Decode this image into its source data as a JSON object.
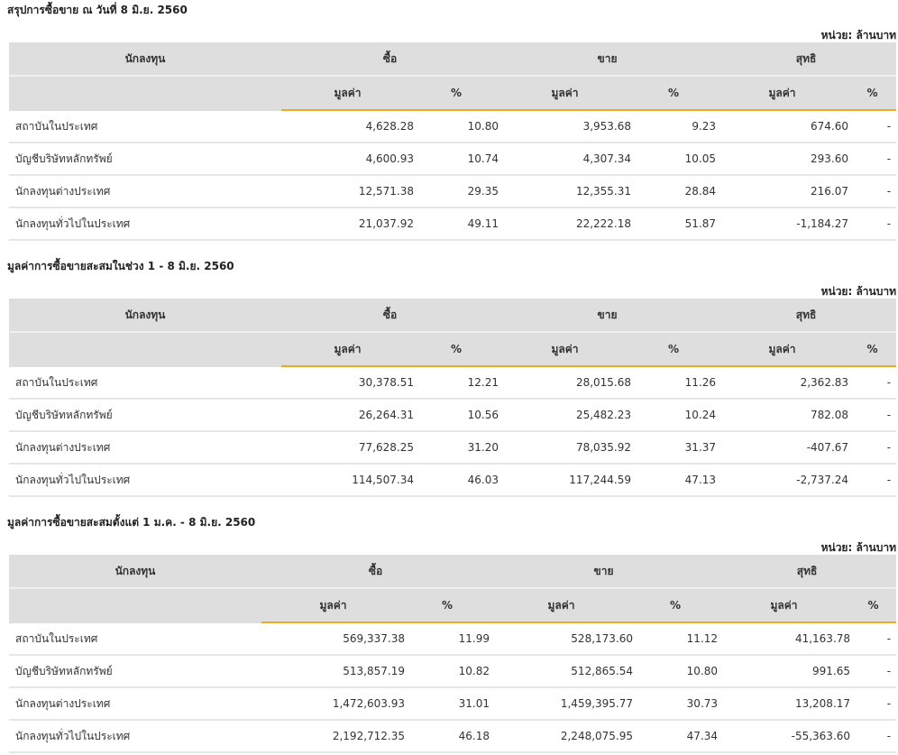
{
  "header_labels": {
    "investor": "นักลงทุน",
    "buy": "ซื้อ",
    "sell": "ขาย",
    "net": "สุทธิ",
    "value": "มูลค่า",
    "percent": "%",
    "unit": "หน่วย: ล้านบาท"
  },
  "colors": {
    "header_bg": "#dedede",
    "accent": "#f5a623",
    "positive": "#2e7d32",
    "negative": "#e02424"
  },
  "tables": [
    {
      "title": "สรุปการซื้อขาย ณ วันที่ 8 มิ.ย. 2560",
      "rows": [
        {
          "investor": "สถาบันในประเทศ",
          "buy_value": "4,628.28",
          "buy_pct": "10.80",
          "sell_value": "3,953.68",
          "sell_pct": "9.23",
          "net_value": "674.60",
          "net_pct": "-",
          "net_sign": "pos"
        },
        {
          "investor": "บัญชีบริษัทหลักทรัพย์",
          "buy_value": "4,600.93",
          "buy_pct": "10.74",
          "sell_value": "4,307.34",
          "sell_pct": "10.05",
          "net_value": "293.60",
          "net_pct": "-",
          "net_sign": "pos"
        },
        {
          "investor": "นักลงทุนต่างประเทศ",
          "buy_value": "12,571.38",
          "buy_pct": "29.35",
          "sell_value": "12,355.31",
          "sell_pct": "28.84",
          "net_value": "216.07",
          "net_pct": "-",
          "net_sign": "pos"
        },
        {
          "investor": "นักลงทุนทั่วไปในประเทศ",
          "buy_value": "21,037.92",
          "buy_pct": "49.11",
          "sell_value": "22,222.18",
          "sell_pct": "51.87",
          "net_value": "-1,184.27",
          "net_pct": "-",
          "net_sign": "neg"
        }
      ]
    },
    {
      "title": "มูลค่าการซื้อขายสะสมในช่วง 1 - 8 มิ.ย. 2560",
      "rows": [
        {
          "investor": "สถาบันในประเทศ",
          "buy_value": "30,378.51",
          "buy_pct": "12.21",
          "sell_value": "28,015.68",
          "sell_pct": "11.26",
          "net_value": "2,362.83",
          "net_pct": "-",
          "net_sign": "pos"
        },
        {
          "investor": "บัญชีบริษัทหลักทรัพย์",
          "buy_value": "26,264.31",
          "buy_pct": "10.56",
          "sell_value": "25,482.23",
          "sell_pct": "10.24",
          "net_value": "782.08",
          "net_pct": "-",
          "net_sign": "pos"
        },
        {
          "investor": "นักลงทุนต่างประเทศ",
          "buy_value": "77,628.25",
          "buy_pct": "31.20",
          "sell_value": "78,035.92",
          "sell_pct": "31.37",
          "net_value": "-407.67",
          "net_pct": "-",
          "net_sign": "neg"
        },
        {
          "investor": "นักลงทุนทั่วไปในประเทศ",
          "buy_value": "114,507.34",
          "buy_pct": "46.03",
          "sell_value": "117,244.59",
          "sell_pct": "47.13",
          "net_value": "-2,737.24",
          "net_pct": "-",
          "net_sign": "neg"
        }
      ]
    },
    {
      "title": "มูลค่าการซื้อขายสะสมตั้งแต่ 1 ม.ค. - 8 มิ.ย. 2560",
      "rows": [
        {
          "investor": "สถาบันในประเทศ",
          "buy_value": "569,337.38",
          "buy_pct": "11.99",
          "sell_value": "528,173.60",
          "sell_pct": "11.12",
          "net_value": "41,163.78",
          "net_pct": "-",
          "net_sign": "pos"
        },
        {
          "investor": "บัญชีบริษัทหลักทรัพย์",
          "buy_value": "513,857.19",
          "buy_pct": "10.82",
          "sell_value": "512,865.54",
          "sell_pct": "10.80",
          "net_value": "991.65",
          "net_pct": "-",
          "net_sign": "pos"
        },
        {
          "investor": "นักลงทุนต่างประเทศ",
          "buy_value": "1,472,603.93",
          "buy_pct": "31.01",
          "sell_value": "1,459,395.77",
          "sell_pct": "30.73",
          "net_value": "13,208.17",
          "net_pct": "-",
          "net_sign": "pos"
        },
        {
          "investor": "นักลงทุนทั่วไปในประเทศ",
          "buy_value": "2,192,712.35",
          "buy_pct": "46.18",
          "sell_value": "2,248,075.95",
          "sell_pct": "47.34",
          "net_value": "-55,363.60",
          "net_pct": "-",
          "net_sign": "neg"
        }
      ]
    }
  ]
}
